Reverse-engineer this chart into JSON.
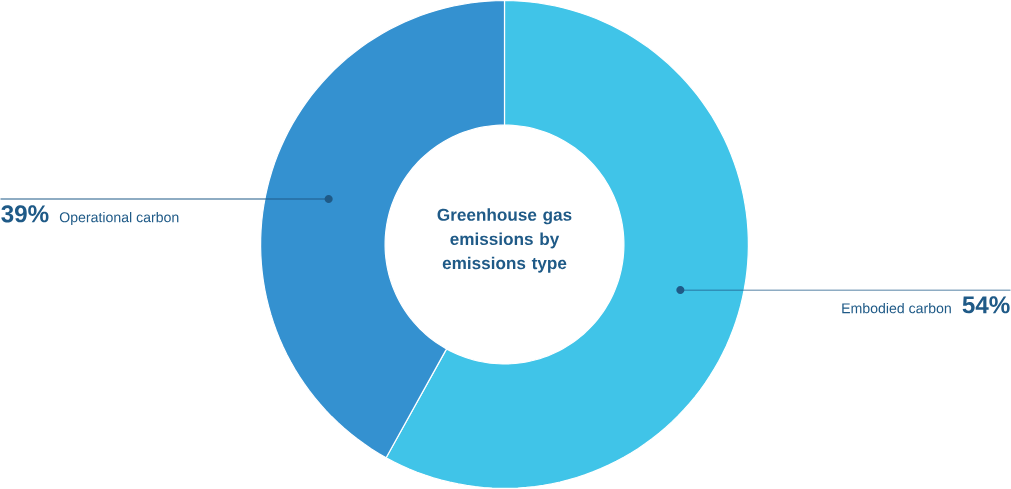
{
  "chart_data": {
    "type": "donut",
    "title": "Greenhouse gas emissions by emissions type",
    "categories": [
      "Embodied carbon",
      "Operational carbon"
    ],
    "values": [
      54,
      39
    ],
    "value_labels": [
      "54%",
      "39%"
    ],
    "colors": [
      "#40c4e8",
      "#3491d0"
    ]
  }
}
